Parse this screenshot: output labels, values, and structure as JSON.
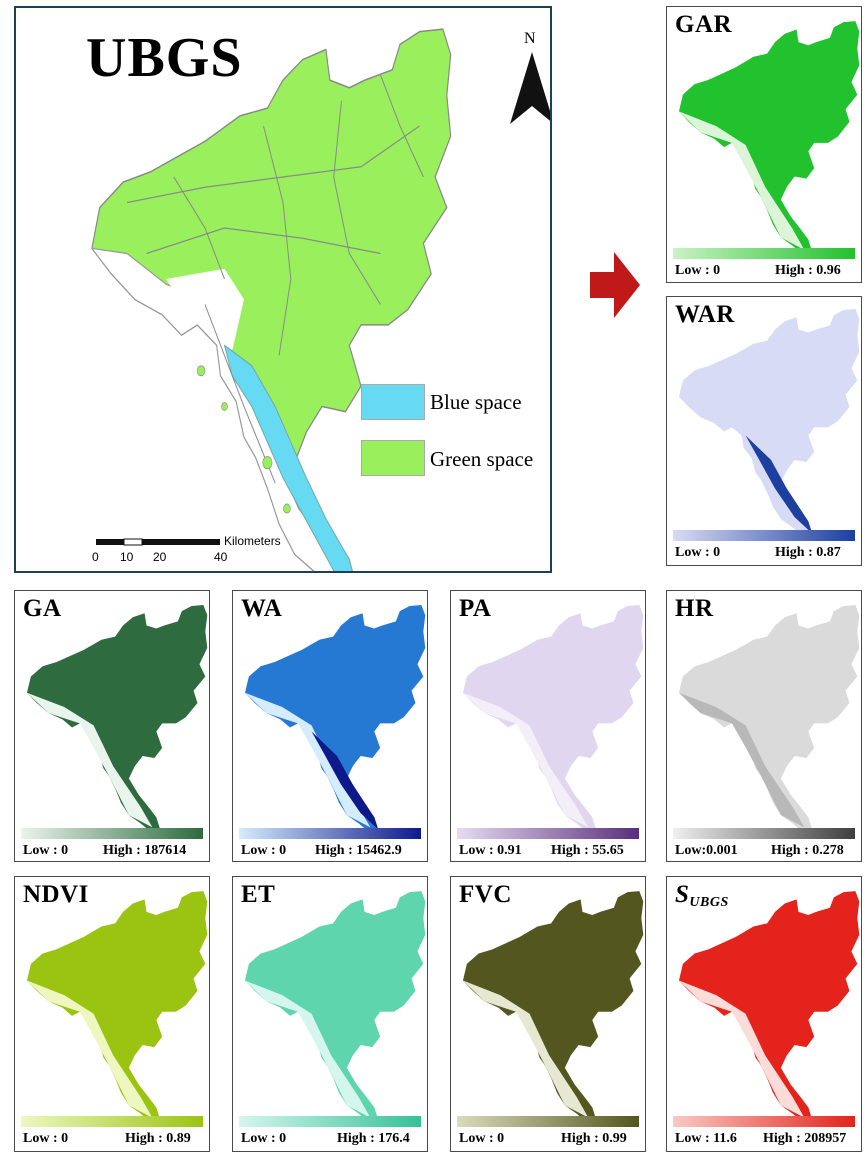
{
  "main": {
    "title": "UBGS",
    "north": "N",
    "legend": [
      {
        "label": "Blue space",
        "color": "#66d9f3"
      },
      {
        "label": "Green space",
        "color": "#99f05c"
      }
    ],
    "scale": {
      "ticks": [
        "0",
        "10",
        "20",
        "40"
      ],
      "unit": "Kilometers"
    }
  },
  "panels": {
    "gar": {
      "title": "GAR",
      "low": "Low : 0",
      "high": "High : 0.96",
      "color_low": "#c9f2c4",
      "color_high": "#22c12e"
    },
    "war": {
      "title": "WAR",
      "low": "Low : 0",
      "high": "High : 0.87",
      "color_low": "#d8dbf5",
      "color_high": "#1c3fa0"
    },
    "ga": {
      "title": "GA",
      "low": "Low : 0",
      "high": "High : 187614",
      "color_low": "#e9f4ec",
      "color_high": "#2e6b3e"
    },
    "wa": {
      "title": "WA",
      "low": "Low : 0",
      "high": "High : 15462.9",
      "color_low": "#d4ecfb",
      "color_high": "#0e1a8c"
    },
    "pa": {
      "title": "PA",
      "low": "Low : 0.91",
      "high": "High : 55.65",
      "color_low": "#e6dcf2",
      "color_high": "#5a2d7a"
    },
    "hr": {
      "title": "HR",
      "low": "Low:0.001",
      "high": "High : 0.278",
      "color_low": "#efefef",
      "color_high": "#3e3e3e"
    },
    "ndvi": {
      "title": "NDVI",
      "low": "Low : 0",
      "high": "High : 0.89",
      "color_low": "#eef7c0",
      "color_high": "#9bc412"
    },
    "et": {
      "title": "ET",
      "low": "Low : 0",
      "high": "High : 176.4",
      "color_low": "#d5f6ec",
      "color_high": "#36c196"
    },
    "fvc": {
      "title": "FVC",
      "low": "Low : 0",
      "high": "High : 0.99",
      "color_low": "#d9dcbb",
      "color_high": "#53561f"
    },
    "subgs": {
      "title": "S",
      "title_sub": "UBGS",
      "low": "Low : 11.6",
      "high": "High : 208957",
      "color_low": "#f9c9c3",
      "color_high": "#e3231c"
    }
  },
  "colors": {
    "arrow": "#c0191a",
    "frame": "#1f3f55"
  }
}
